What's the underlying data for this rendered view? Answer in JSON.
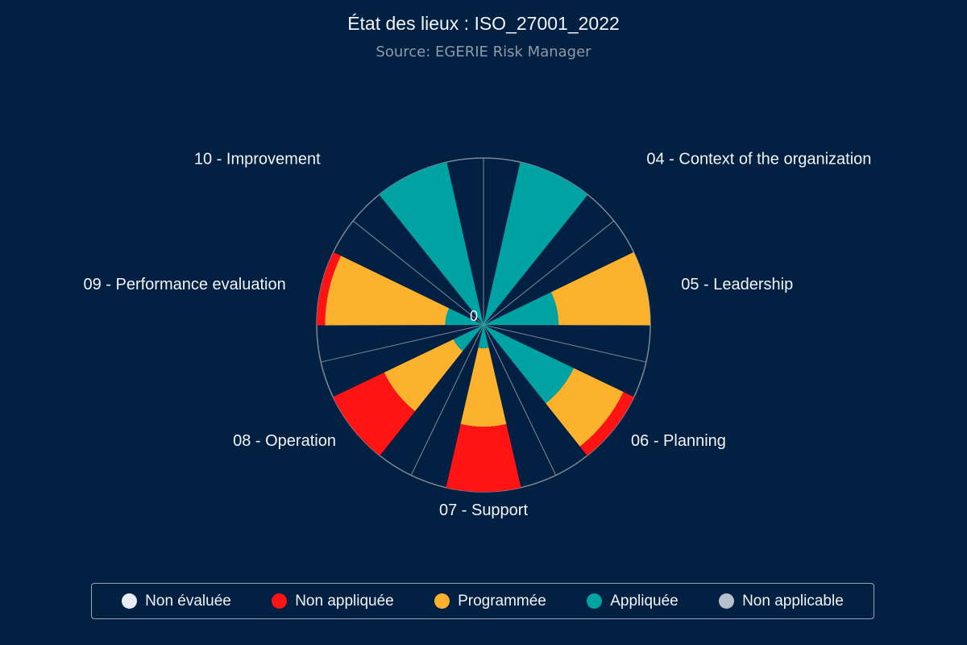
{
  "header": {
    "title": "État des lieux : ISO_27001_2022",
    "subtitle": "Source: EGERIE Risk Manager"
  },
  "colors": {
    "background": "#022041",
    "non_evaluee": "#e9edf3",
    "non_appliquee": "#ff1313",
    "programmee": "#fdb22e",
    "appliquee": "#00a3a3",
    "non_applicable": "#b7c0cc",
    "grid": "#7e8896"
  },
  "chart_data": {
    "type": "polar-stacked-bar",
    "title": "État des lieux : ISO_27001_2022",
    "subtitle": "Source: EGERIE Risk Manager",
    "categories": [
      "04 - Context of the organization",
      "05 - Leadership",
      "06 - Planning",
      "07 - Support",
      "08 - Operation",
      "09 - Performance evaluation",
      "10 - Improvement"
    ],
    "radial_axis_label": "0",
    "series": [
      {
        "name": "Non évaluée",
        "color": "#e9edf3",
        "values": [
          0,
          0,
          0,
          0,
          0,
          0,
          0
        ]
      },
      {
        "name": "Appliquée",
        "color": "#00a3a3",
        "values": [
          100,
          45,
          60,
          14,
          20,
          23,
          100
        ]
      },
      {
        "name": "Programmée",
        "color": "#fdb22e",
        "values": [
          0,
          55,
          33,
          47,
          46,
          72,
          0
        ]
      },
      {
        "name": "Non appliquée",
        "color": "#ff1313",
        "values": [
          0,
          0,
          7,
          39,
          34,
          5,
          0
        ]
      },
      {
        "name": "Non applicable",
        "color": "#b7c0cc",
        "values": [
          0,
          0,
          0,
          0,
          0,
          0,
          0
        ]
      }
    ]
  },
  "legend": {
    "items": [
      {
        "label": "Non évaluée",
        "color": "#e9edf3"
      },
      {
        "label": "Non appliquée",
        "color": "#ff1313"
      },
      {
        "label": "Programmée",
        "color": "#fdb22e"
      },
      {
        "label": "Appliquée",
        "color": "#00a3a3"
      },
      {
        "label": "Non applicable",
        "color": "#b7c0cc"
      }
    ]
  }
}
